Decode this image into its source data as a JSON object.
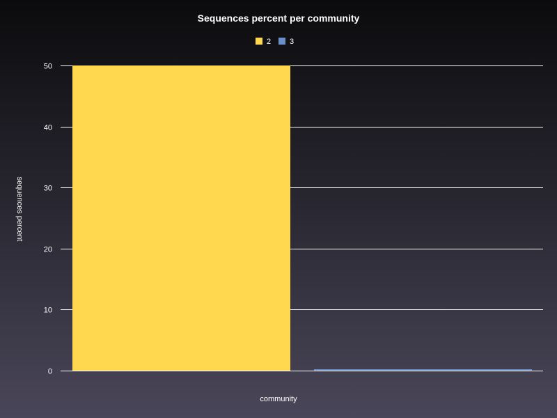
{
  "chart_data": {
    "type": "bar",
    "title": "Sequences percent per community",
    "xlabel": "community",
    "ylabel": "sequences percent",
    "ylim": [
      0,
      50
    ],
    "yticks": [
      0,
      10,
      20,
      30,
      40,
      50
    ],
    "categories": [
      ""
    ],
    "series": [
      {
        "name": "2",
        "values": [
          50
        ],
        "color": "#ffd84f"
      },
      {
        "name": "3",
        "values": [
          0
        ],
        "color": "#6b8fc6"
      }
    ],
    "grid": true,
    "legend_position": "top-center"
  }
}
